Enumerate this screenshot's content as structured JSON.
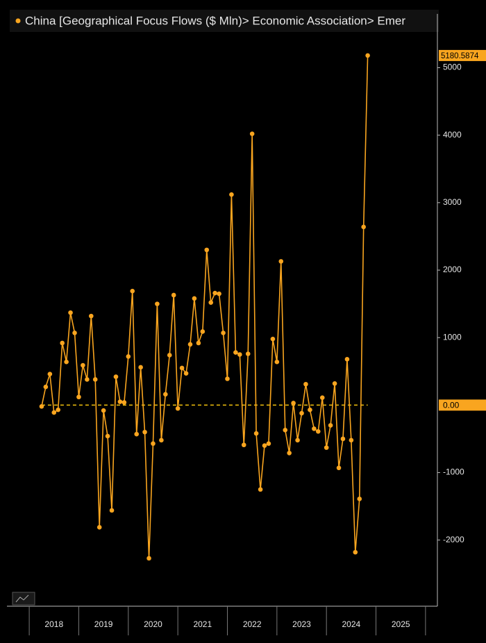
{
  "chart_data": {
    "type": "line",
    "title": "China [Geographical Focus Flows ($ Mln)> Economic Association> Emer",
    "series": [
      {
        "name": "China [Geographical Focus Flows ($ Mln)> Economic Association> Emer",
        "color": "#f9a51f",
        "x": [
          2018.25,
          2018.333,
          2018.417,
          2018.5,
          2018.583,
          2018.667,
          2018.75,
          2018.833,
          2018.917,
          2019.0,
          2019.083,
          2019.167,
          2019.25,
          2019.333,
          2019.417,
          2019.5,
          2019.583,
          2019.667,
          2019.75,
          2019.833,
          2019.917,
          2020.0,
          2020.083,
          2020.167,
          2020.25,
          2020.333,
          2020.417,
          2020.5,
          2020.583,
          2020.667,
          2020.75,
          2020.833,
          2020.917,
          2021.0,
          2021.083,
          2021.167,
          2021.25,
          2021.333,
          2021.417,
          2021.5,
          2021.583,
          2021.667,
          2021.75,
          2021.833,
          2021.917,
          2022.0,
          2022.083,
          2022.167,
          2022.25,
          2022.333,
          2022.417,
          2022.5,
          2022.583,
          2022.667,
          2022.75,
          2022.833,
          2022.917,
          2023.0,
          2023.083,
          2023.167,
          2023.25,
          2023.333,
          2023.417,
          2023.5,
          2023.583,
          2023.667,
          2023.75,
          2023.833,
          2023.917,
          2024.0,
          2024.083,
          2024.167,
          2024.25,
          2024.333,
          2024.417,
          2024.5,
          2024.583,
          2024.667,
          2024.75,
          2024.833
        ],
        "values": [
          -20,
          270,
          460,
          -110,
          -70,
          920,
          640,
          1370,
          1070,
          120,
          590,
          380,
          1320,
          380,
          -1810,
          -80,
          -460,
          -1560,
          420,
          50,
          40,
          720,
          1690,
          -430,
          560,
          -400,
          -2270,
          -570,
          1500,
          -520,
          160,
          740,
          1630,
          -50,
          550,
          470,
          900,
          1580,
          920,
          1090,
          2300,
          1520,
          1660,
          1650,
          1070,
          390,
          3120,
          780,
          750,
          -590,
          760,
          4020,
          -420,
          -1250,
          -600,
          -570,
          980,
          640,
          2130,
          -370,
          -710,
          30,
          -520,
          -120,
          310,
          -70,
          -350,
          -390,
          110,
          -630,
          -300,
          320,
          -930,
          -500,
          680,
          -520,
          -2180,
          -1390,
          2640,
          5180.5874
        ]
      }
    ],
    "last_value_label": "5180.5874",
    "reference_line": {
      "value": 0,
      "label": "0.00"
    },
    "xlim": [
      2017.55,
      2026.24
    ],
    "xticks": [
      {
        "value": 2018.5,
        "label": "2018"
      },
      {
        "value": 2019.5,
        "label": "2019"
      },
      {
        "value": 2020.5,
        "label": "2020"
      },
      {
        "value": 2021.5,
        "label": "2021"
      },
      {
        "value": 2022.5,
        "label": "2022"
      },
      {
        "value": 2023.5,
        "label": "2023"
      },
      {
        "value": 2024.5,
        "label": "2024"
      },
      {
        "value": 2025.5,
        "label": "2025"
      }
    ],
    "ylim": [
      -2980,
      5540
    ],
    "yticks": [
      -2000,
      -1000,
      1000,
      2000,
      3000,
      4000,
      5000
    ]
  }
}
